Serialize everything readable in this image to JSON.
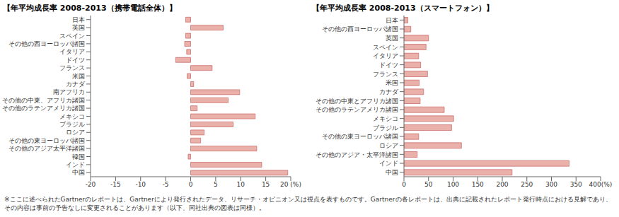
{
  "chart_data": [
    {
      "type": "bar",
      "orientation": "horizontal",
      "title": "【年平均成長率 2008-2013（携帯電話全体）】",
      "categories": [
        "日本",
        "英国",
        "スペイン",
        "その他の西ヨーロッパ諸国",
        "イタリア",
        "ドイツ",
        "フランス",
        "米国",
        "カナダ",
        "南アフリカ",
        "その他の中東、アフリカ諸国",
        "その他のラテンアメリカ諸国",
        "メキシコ",
        "ブラジル",
        "ロシア",
        "その他の東ヨーロッパ諸国",
        "その他のアジア太平洋諸国",
        "韓国",
        "インド",
        "中国"
      ],
      "values": [
        -1,
        6.5,
        -1,
        -1.2,
        -0.8,
        -3,
        4.3,
        -0.7,
        0.6,
        9.8,
        7.5,
        1.3,
        12.9,
        8.5,
        2.7,
        2,
        13.2,
        -0.5,
        14.2,
        19.4
      ],
      "color": "#eab0aa",
      "xlim": [
        -20,
        20
      ],
      "xticks": [
        -20,
        -15,
        -10,
        -5,
        0,
        5,
        10,
        15,
        {
          "value": 20,
          "label": "20 (%)"
        }
      ],
      "grid": false
    },
    {
      "type": "bar",
      "orientation": "horizontal",
      "title": "【年平均成長率 2008-2013（スマートフォン）】",
      "categories": [
        "日本",
        "その他の西ヨーロッパ諸国",
        "英国",
        "スペイン",
        "イタリア",
        "ドイツ",
        "フランス",
        "米国",
        "カナダ",
        "その他の中東とアフリカ諸国",
        "その他のラテンアメリカ諸国",
        "メキシコ",
        "ブラジル",
        "その他の東ヨーロッパ諸国",
        "ロシア",
        "その他のアジア・太平洋諸国",
        "インド",
        "中国"
      ],
      "values": [
        8,
        14,
        50,
        45,
        30,
        34,
        48,
        31,
        40,
        33,
        82,
        101,
        97,
        30,
        117,
        27,
        336,
        220
      ],
      "color": "#eab0aa",
      "xlim": [
        0,
        400
      ],
      "xticks": [
        0,
        50,
        100,
        150,
        200,
        250,
        300,
        350,
        {
          "value": 400,
          "label": "400(%)"
        }
      ],
      "grid": false
    }
  ],
  "footnote": "※ここに述べられたGartnerのレポートは、Gartnerにより発行されたデータ、リサーチ・オピニオン又は視点を表すものです。Gartnerの各レポートは、出典に記載されたレポート発行時点における見解であり、その内容は事前の予告なしに変更されることがあります（以下、同社出典の図表は同様）。"
}
